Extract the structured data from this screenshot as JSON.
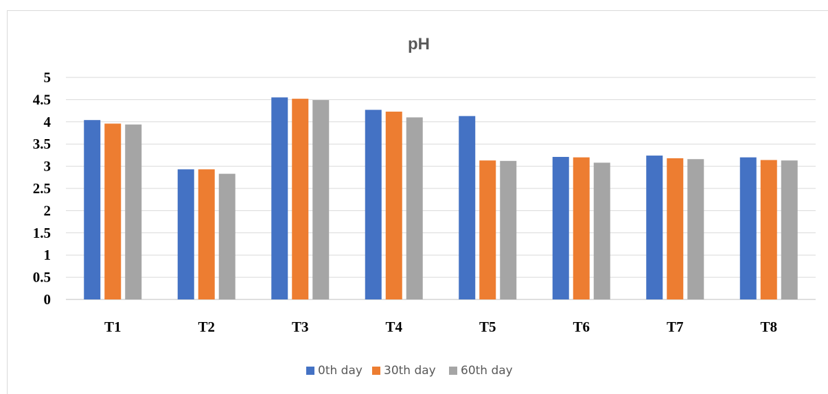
{
  "chart_data": {
    "type": "bar",
    "title": "pH",
    "xlabel": "",
    "ylabel": "",
    "categories": [
      "T1",
      "T2",
      "T3",
      "T4",
      "T5",
      "T6",
      "T7",
      "T8"
    ],
    "series": [
      {
        "name": "0th day",
        "color": "#4472c4",
        "values": [
          4.04,
          2.93,
          4.55,
          4.27,
          4.13,
          3.21,
          3.24,
          3.2
        ]
      },
      {
        "name": "30th day",
        "color": "#ed7d31",
        "values": [
          3.96,
          2.93,
          4.52,
          4.23,
          3.13,
          3.2,
          3.18,
          3.14
        ]
      },
      {
        "name": "60th day",
        "color": "#a5a5a5",
        "values": [
          3.94,
          2.83,
          4.49,
          4.1,
          3.12,
          3.08,
          3.16,
          3.13
        ]
      }
    ],
    "ylim": [
      0,
      5
    ],
    "yticks": [
      "0",
      "0.5",
      "1",
      "1.5",
      "2",
      "2.5",
      "3",
      "3.5",
      "4",
      "4.5",
      "5"
    ],
    "grid": true,
    "legend_position": "bottom"
  }
}
